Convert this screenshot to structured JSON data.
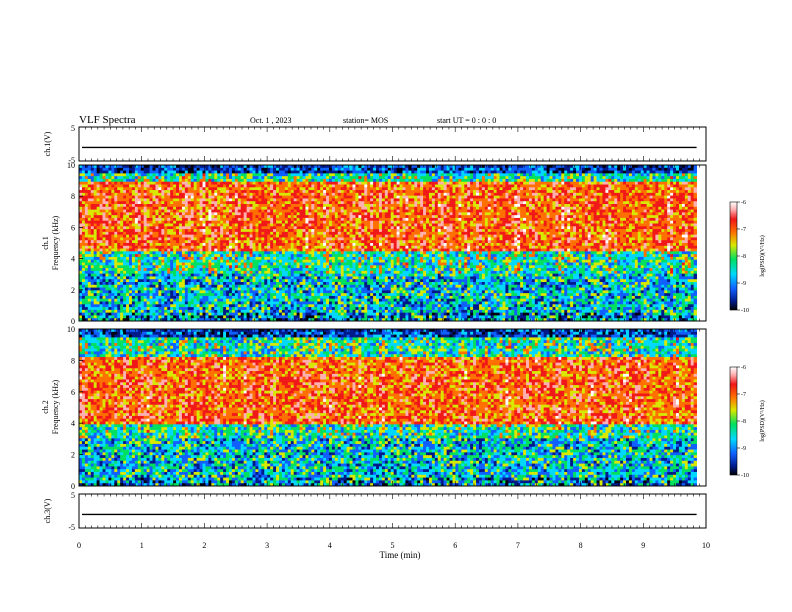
{
  "header": {
    "title": "VLF Spectra",
    "date": "Oct. 1 , 2023",
    "station": "station= MOS",
    "start_ut": "start UT = 0 : 0 : 0"
  },
  "chart_data": [
    {
      "type": "line",
      "name": "ch1-waveform",
      "ylabel": "ch.1(V)",
      "ylim": [
        -5,
        5
      ],
      "yticks": [
        "5",
        "-5"
      ],
      "xlim": [
        0,
        10
      ],
      "mean_level": -1.0,
      "valid_until_min": 9.85
    },
    {
      "type": "heatmap",
      "name": "ch1-spectrogram",
      "ylabel": "ch.1\nFrequency (kHz)",
      "ylim": [
        0,
        10
      ],
      "yticks": [
        "0",
        "2",
        "4",
        "6",
        "8",
        "10"
      ],
      "xlim": [
        0,
        10
      ],
      "valid_until_min": 9.85,
      "colorbar": {
        "label": "log(PSD)(V²/Hz)",
        "range": [
          -10,
          -6
        ],
        "ticks": [
          "-6",
          "-7",
          "-8",
          "-9",
          "-10"
        ]
      }
    },
    {
      "type": "heatmap",
      "name": "ch2-spectrogram",
      "ylabel": "ch.2\nFrequency (kHz)",
      "ylim": [
        0,
        10
      ],
      "yticks": [
        "0",
        "2",
        "4",
        "6",
        "8",
        "10"
      ],
      "xlim": [
        0,
        10
      ],
      "valid_until_min": 9.85,
      "colorbar": {
        "label": "log(PSD)(V²/Hz)",
        "range": [
          -10,
          -6
        ],
        "ticks": [
          "-6",
          "-7",
          "-8",
          "-9",
          "-10"
        ]
      }
    },
    {
      "type": "line",
      "name": "ch3-waveform",
      "ylabel": "ch.3(V)",
      "ylim": [
        -5,
        5
      ],
      "yticks": [
        "5",
        "-5"
      ],
      "xlim": [
        0,
        10
      ],
      "mean_level": -1.0,
      "valid_until_min": 9.85
    }
  ],
  "xaxis": {
    "label": "Time (min)",
    "ticks": [
      "0",
      "1",
      "2",
      "3",
      "4",
      "5",
      "6",
      "7",
      "8",
      "9",
      "10"
    ]
  }
}
